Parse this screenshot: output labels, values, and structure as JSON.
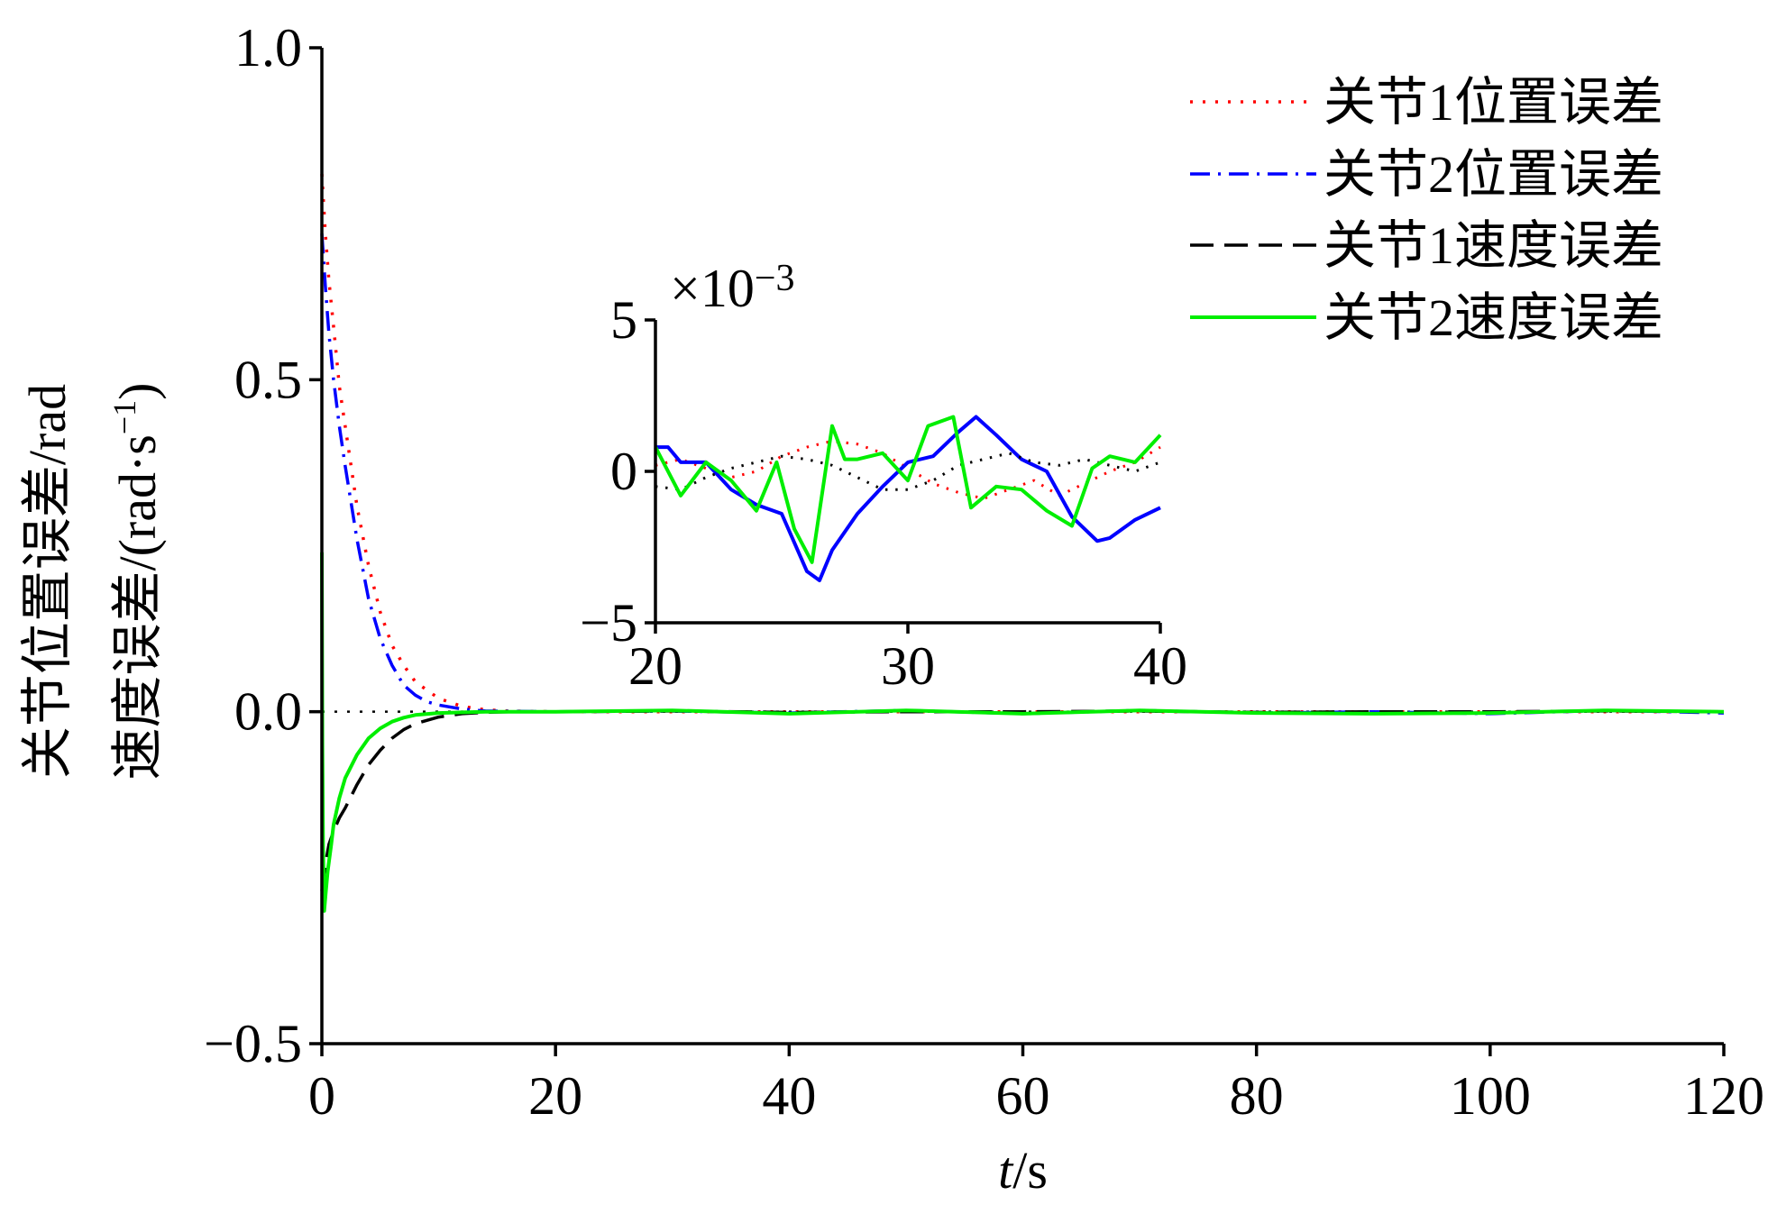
{
  "chart_data": [
    {
      "type": "line",
      "name": "main",
      "xlabel_var": "t",
      "xlabel_unit": "/s",
      "ylabel_line1": "关节位置误差/rad",
      "ylabel_line2_prefix": "速度误差/(rad·s",
      "ylabel_line2_sup": "−1",
      "ylabel_line2_suffix": ")",
      "xlim": [
        0,
        120
      ],
      "ylim": [
        -0.5,
        1.0
      ],
      "x_ticks": [
        0,
        20,
        40,
        60,
        80,
        100,
        120
      ],
      "x_tick_labels": [
        "0",
        "20",
        "40",
        "60",
        "80",
        "100",
        "120"
      ],
      "y_ticks": [
        -0.5,
        0.0,
        0.5,
        1.0
      ],
      "y_tick_labels": [
        "−0.5",
        "0.0",
        "0.5",
        "1.0"
      ],
      "legend_position": "top-right",
      "series": [
        {
          "name": "关节1位置误差",
          "color": "#ff0000",
          "style": "dotted",
          "x": [
            0,
            0.3,
            0.6,
            1,
            1.5,
            2,
            3,
            4,
            5,
            6,
            7,
            8,
            10,
            12,
            14,
            16,
            20,
            30,
            40,
            50,
            60,
            70,
            80,
            90,
            100,
            110,
            120
          ],
          "y": [
            0.81,
            0.72,
            0.65,
            0.58,
            0.49,
            0.43,
            0.31,
            0.22,
            0.15,
            0.1,
            0.07,
            0.045,
            0.02,
            0.008,
            0.003,
            0.001,
            0.0,
            0.0,
            0.0,
            0.0,
            0.0,
            0.0,
            0.0,
            0.0,
            0.0,
            0.0,
            0.0
          ]
        },
        {
          "name": "关节2位置误差",
          "color": "#0000ff",
          "style": "dashdot",
          "x": [
            0,
            0.3,
            0.6,
            1,
            1.5,
            2,
            3,
            4,
            5,
            6,
            7,
            8,
            9,
            10,
            12,
            14,
            20,
            30,
            40,
            50,
            60,
            70,
            80,
            90,
            100,
            110,
            120
          ],
          "y": [
            0.72,
            0.64,
            0.57,
            0.5,
            0.43,
            0.37,
            0.26,
            0.17,
            0.11,
            0.07,
            0.04,
            0.025,
            0.015,
            0.01,
            0.004,
            0.001,
            0.0,
            0.001,
            -0.002,
            0.002,
            -0.003,
            0.002,
            -0.002,
            0.0,
            -0.003,
            0.002,
            -0.002
          ]
        },
        {
          "name": "关节1速度误差",
          "color": "#000000",
          "style": "dashed",
          "x": [
            0,
            0.3,
            0.6,
            1,
            1.5,
            2,
            3,
            4,
            5,
            6,
            7,
            8,
            10,
            12,
            14,
            16,
            20,
            30,
            40,
            50,
            60,
            70,
            80,
            90,
            100,
            110,
            120
          ],
          "y": [
            -0.27,
            -0.23,
            -0.2,
            -0.18,
            -0.16,
            -0.145,
            -0.11,
            -0.08,
            -0.058,
            -0.04,
            -0.027,
            -0.018,
            -0.008,
            -0.003,
            -0.001,
            0.0,
            0.0,
            0.001,
            -0.001,
            0.0,
            0.0,
            0.001,
            -0.001,
            0.0,
            0.0,
            0.001,
            0.0
          ]
        },
        {
          "name": "关节2速度误差",
          "color": "#00ee00",
          "style": "solid",
          "x": [
            0,
            0.05,
            0.1,
            0.2,
            0.35,
            0.5,
            0.8,
            1,
            1.5,
            2,
            3,
            4,
            5,
            6,
            7,
            8,
            10,
            12,
            14,
            20,
            30,
            40,
            50,
            60,
            70,
            80,
            90,
            100,
            110,
            120
          ],
          "y": [
            0.24,
            -0.05,
            -0.2,
            -0.3,
            -0.27,
            -0.24,
            -0.2,
            -0.17,
            -0.13,
            -0.1,
            -0.065,
            -0.04,
            -0.025,
            -0.015,
            -0.009,
            -0.005,
            -0.002,
            -0.001,
            0.0,
            0.0,
            0.002,
            -0.003,
            0.002,
            -0.003,
            0.002,
            -0.002,
            -0.003,
            -0.002,
            0.002,
            0.0
          ]
        }
      ]
    },
    {
      "type": "line",
      "name": "inset",
      "scale_label_prefix": "×10",
      "scale_label_exp": "−3",
      "xlim": [
        20,
        40
      ],
      "ylim": [
        -5,
        5
      ],
      "x_ticks": [
        20,
        30,
        40
      ],
      "x_tick_labels": [
        "20",
        "30",
        "40"
      ],
      "y_ticks": [
        -5,
        0,
        5
      ],
      "y_tick_labels": [
        "−5",
        "0",
        "5"
      ],
      "series": [
        {
          "name": "关节1位置误差",
          "color": "#ff0000",
          "style": "dotted",
          "x": [
            20,
            21,
            22,
            23,
            24,
            25,
            26,
            27,
            28,
            29,
            30,
            31,
            32,
            33,
            34,
            35,
            36,
            37,
            38,
            39,
            40
          ],
          "y": [
            0.2,
            0.4,
            0.1,
            -0.2,
            0.0,
            0.5,
            0.8,
            1.0,
            0.9,
            0.6,
            0.1,
            -0.4,
            -0.7,
            -0.9,
            -0.6,
            -0.3,
            -0.8,
            -0.4,
            0.0,
            0.3,
            0.8
          ]
        },
        {
          "name": "关节2位置误差",
          "color": "#0000ff",
          "style": "solid",
          "x": [
            20,
            20.5,
            21,
            22,
            23,
            24,
            25,
            26,
            26.5,
            27,
            28,
            29,
            30,
            31,
            32,
            32.7,
            33.5,
            34.5,
            35.5,
            36.5,
            37.5,
            38,
            39,
            40
          ],
          "y": [
            0.8,
            0.8,
            0.3,
            0.3,
            -0.6,
            -1.1,
            -1.4,
            -3.3,
            -3.6,
            -2.6,
            -1.4,
            -0.5,
            0.3,
            0.5,
            1.3,
            1.8,
            1.2,
            0.4,
            0.0,
            -1.5,
            -2.3,
            -2.2,
            -1.6,
            -1.2
          ]
        },
        {
          "name": "关节1速度误差",
          "color": "#000000",
          "style": "dotted",
          "x": [
            20,
            21,
            22,
            23,
            24,
            25,
            26,
            27,
            28,
            29,
            30,
            31,
            32,
            33,
            34,
            35,
            36,
            37,
            38,
            39,
            40
          ],
          "y": [
            -0.5,
            -0.6,
            -0.2,
            0.1,
            0.3,
            0.5,
            0.4,
            0.2,
            -0.2,
            -0.6,
            -0.6,
            -0.3,
            0.2,
            0.4,
            0.6,
            0.3,
            0.2,
            0.4,
            0.2,
            0.0,
            0.3
          ]
        },
        {
          "name": "关节2速度误差",
          "color": "#00ee00",
          "style": "solid",
          "x": [
            20,
            21,
            22,
            23,
            24,
            24.8,
            25.5,
            26.2,
            27,
            27.5,
            28,
            29,
            30,
            30.8,
            31.8,
            32.5,
            33.5,
            34.5,
            35.5,
            36.5,
            37.3,
            38,
            39,
            40
          ],
          "y": [
            0.8,
            -0.8,
            0.3,
            -0.3,
            -1.3,
            0.3,
            -1.9,
            -3.0,
            1.5,
            0.4,
            0.4,
            0.6,
            -0.3,
            1.5,
            1.8,
            -1.2,
            -0.5,
            -0.6,
            -1.3,
            -1.8,
            0.1,
            0.5,
            0.3,
            1.2
          ]
        }
      ]
    }
  ]
}
